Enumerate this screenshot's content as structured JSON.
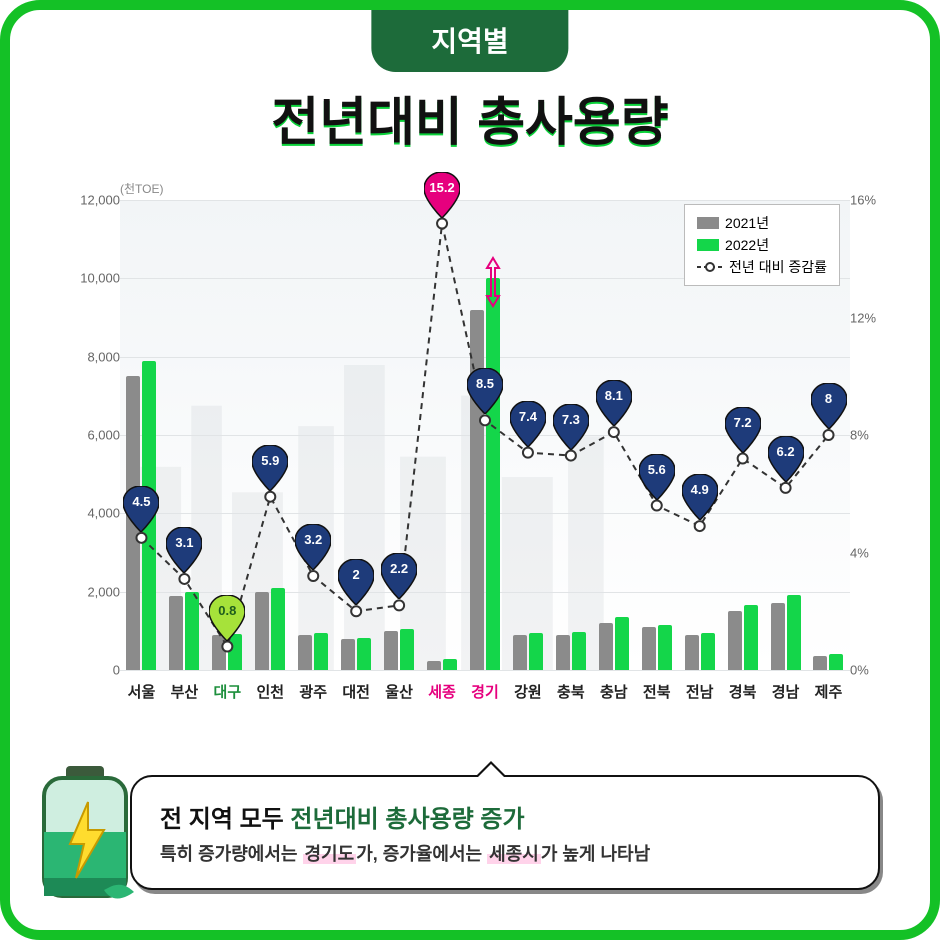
{
  "header": {
    "tab": "지역별",
    "title": "전년대비 총사용량"
  },
  "chart": {
    "type": "bar+line",
    "y_left_label": "(천TOE)",
    "y_left": {
      "min": 0,
      "max": 12000,
      "step": 2000
    },
    "y_right": {
      "min": 0,
      "max": 16,
      "step": 4,
      "suffix": "%"
    },
    "categories": [
      "서울",
      "부산",
      "대구",
      "인천",
      "광주",
      "대전",
      "울산",
      "세종",
      "경기",
      "강원",
      "충북",
      "충남",
      "전북",
      "전남",
      "경북",
      "경남",
      "제주"
    ],
    "cat_colors": [
      "#222",
      "#222",
      "#1D8F3C",
      "#222",
      "#222",
      "#222",
      "#222",
      "#E6007E",
      "#E6007E",
      "#222",
      "#222",
      "#222",
      "#222",
      "#222",
      "#222",
      "#222",
      "#222"
    ],
    "series": [
      {
        "name": "2021년",
        "color": "#8B8B8B",
        "values": [
          7500,
          1900,
          900,
          2000,
          900,
          800,
          1000,
          220,
          9200,
          900,
          900,
          1200,
          1100,
          900,
          1500,
          1700,
          350
        ]
      },
      {
        "name": "2022년",
        "color": "#14D64A",
        "values": [
          7900,
          2000,
          920,
          2100,
          950,
          820,
          1050,
          280,
          10000,
          950,
          970,
          1350,
          1150,
          950,
          1650,
          1920,
          420
        ]
      }
    ],
    "rate": {
      "name": "전년 대비 증감률",
      "color_line": "#333333",
      "values": [
        4.5,
        3.1,
        0.8,
        5.9,
        3.2,
        2.0,
        2.2,
        15.2,
        8.5,
        7.4,
        7.3,
        8.1,
        5.6,
        4.9,
        7.2,
        6.2,
        8.0
      ],
      "pin_fill": [
        "#1E3B7A",
        "#1E3B7A",
        "#A6E23A",
        "#1E3B7A",
        "#1E3B7A",
        "#1E3B7A",
        "#1E3B7A",
        "#E6007E",
        "#1E3B7A",
        "#1E3B7A",
        "#1E3B7A",
        "#1E3B7A",
        "#1E3B7A",
        "#1E3B7A",
        "#1E3B7A",
        "#1E3B7A",
        "#1E3B7A"
      ],
      "pin_text": [
        "#fff",
        "#fff",
        "#1D5C1D",
        "#fff",
        "#fff",
        "#fff",
        "#fff",
        "#fff",
        "#fff",
        "#fff",
        "#fff",
        "#fff",
        "#fff",
        "#fff",
        "#fff",
        "#fff",
        "#fff"
      ],
      "labels": [
        "4.5",
        "3.1",
        "0.8",
        "5.9",
        "3.2",
        "2",
        "2.2",
        "15.2",
        "8.5",
        "7.4",
        "7.3",
        "8.1",
        "5.6",
        "4.9",
        "7.2",
        "6.2",
        "8"
      ]
    },
    "legend": {
      "bg": "#ffffff",
      "border": "#bbbbbb",
      "items": [
        {
          "swatch": "#8B8B8B",
          "label": "2021년",
          "type": "box"
        },
        {
          "swatch": "#14D64A",
          "label": "2022년",
          "type": "box"
        },
        {
          "swatch": "#333333",
          "label": "전년 대비 증감률",
          "type": "dash"
        }
      ]
    },
    "background": "#ffffff",
    "grid_color": "#e1e4e6"
  },
  "footer": {
    "line1_a": "전 지역 모두",
    "line1_b": "전년대비 총사용량 증가",
    "line2_a": "특히 증가량에서는",
    "line2_hl1": "경기도",
    "line2_b": "가, 증가율에서는",
    "line2_hl2": "세종시",
    "line2_c": "가 높게 나타남"
  }
}
